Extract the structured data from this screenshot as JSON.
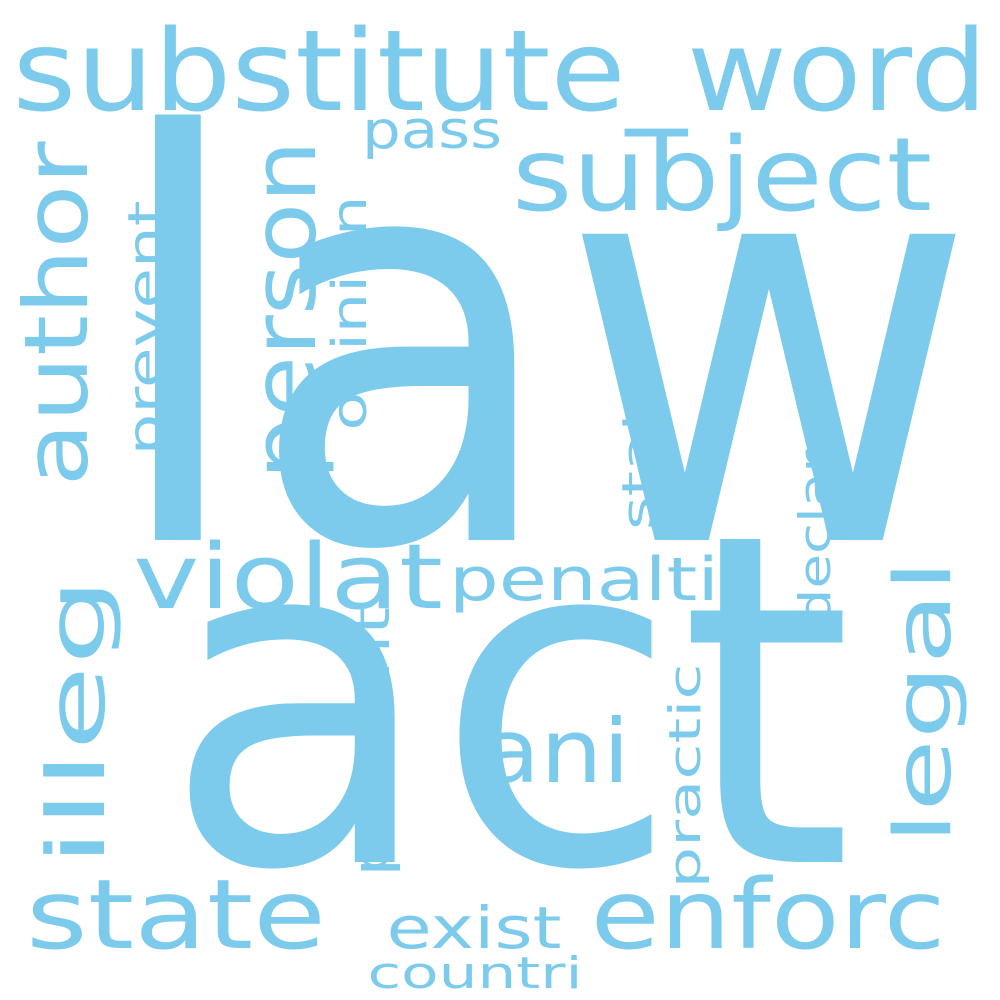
{
  "word_cloud": {
    "color": "#7ccbec",
    "background": "#ffffff",
    "words": [
      {
        "key": "law",
        "text": "law"
      },
      {
        "key": "act",
        "text": "act"
      },
      {
        "key": "substitute_word",
        "text": "substitute_word"
      },
      {
        "key": "subject",
        "text": "subject"
      },
      {
        "key": "person",
        "text": "person"
      },
      {
        "key": "author",
        "text": "author"
      },
      {
        "key": "pass",
        "text": "pass"
      },
      {
        "key": "opinion",
        "text": "opinion"
      },
      {
        "key": "prevent",
        "text": "prevent"
      },
      {
        "key": "violat",
        "text": "violat"
      },
      {
        "key": "penalti",
        "text": "penalti"
      },
      {
        "key": "illeg",
        "text": "illeg"
      },
      {
        "key": "legal",
        "text": "legal"
      },
      {
        "key": "statut",
        "text": "statut"
      },
      {
        "key": "declar",
        "text": "declar"
      },
      {
        "key": "ani",
        "text": "ani"
      },
      {
        "key": "present",
        "text": "present"
      },
      {
        "key": "practic",
        "text": "practic"
      },
      {
        "key": "state",
        "text": "state"
      },
      {
        "key": "enforc",
        "text": "enforc"
      },
      {
        "key": "exist",
        "text": "exist"
      },
      {
        "key": "countri",
        "text": "countri"
      }
    ]
  }
}
